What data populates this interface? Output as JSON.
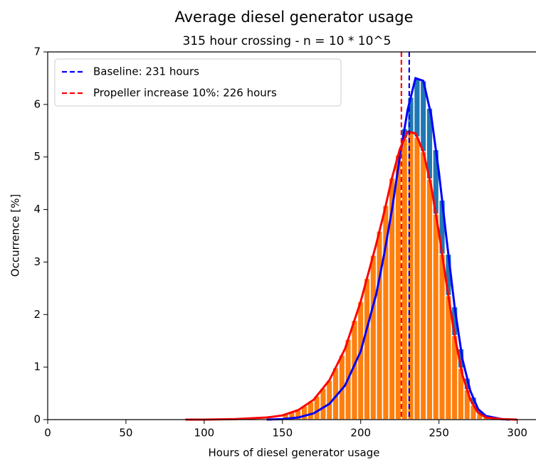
{
  "chart_data": {
    "type": "histogram",
    "title": "Average diesel generator usage",
    "subtitle": "315 hour crossing - n = 10 * 10^5",
    "xlabel": "Hours of diesel generator usage",
    "ylabel": "Occurrence [%]",
    "xlim": [
      0,
      312
    ],
    "ylim": [
      0,
      7
    ],
    "xticks": [
      0,
      50,
      100,
      150,
      200,
      250,
      300
    ],
    "yticks": [
      0,
      1,
      2,
      3,
      4,
      5,
      6,
      7
    ],
    "legend": "upper left",
    "bins": [
      150,
      154,
      158,
      162,
      166,
      170,
      174,
      178,
      182,
      186,
      190,
      194,
      198,
      202,
      206,
      210,
      214,
      218,
      222,
      226,
      230,
      234,
      238,
      242,
      246,
      250,
      254,
      258,
      262,
      266,
      270,
      274,
      278,
      282,
      286,
      290
    ],
    "histograms": [
      {
        "color": "#1f77b4",
        "values": [
          0.02,
          0.03,
          0.04,
          0.07,
          0.1,
          0.16,
          0.23,
          0.3,
          0.44,
          0.58,
          0.78,
          1.04,
          1.3,
          1.74,
          2.18,
          2.7,
          3.32,
          4.0,
          4.8,
          5.54,
          6.14,
          6.49,
          6.45,
          5.93,
          5.14,
          4.18,
          3.15,
          2.15,
          1.35,
          0.79,
          0.43,
          0.17,
          0.07,
          0.04,
          0.02
        ]
      },
      {
        "color": "#ff7f0e",
        "values": [
          0.1,
          0.14,
          0.18,
          0.26,
          0.34,
          0.45,
          0.6,
          0.75,
          0.99,
          1.23,
          1.53,
          1.89,
          2.25,
          2.69,
          3.13,
          3.59,
          4.08,
          4.6,
          5.04,
          5.35,
          5.47,
          5.38,
          5.1,
          4.58,
          3.91,
          3.15,
          2.36,
          1.6,
          0.98,
          0.57,
          0.28,
          0.11,
          0.04,
          0.03,
          0.02
        ]
      }
    ],
    "curves": [
      {
        "color": "#0000ff",
        "x": [
          140,
          150,
          160,
          170,
          180,
          190,
          200,
          210,
          215,
          220,
          225,
          230,
          235,
          240,
          245,
          250,
          255,
          260,
          265,
          270,
          275,
          280,
          290,
          295
        ],
        "values": [
          0,
          0.01,
          0.04,
          0.12,
          0.3,
          0.65,
          1.3,
          2.4,
          3.15,
          4.0,
          5.0,
          5.9,
          6.5,
          6.45,
          5.8,
          4.7,
          3.4,
          2.15,
          1.15,
          0.55,
          0.2,
          0.07,
          0.01,
          0
        ]
      },
      {
        "color": "#ff0000",
        "x": [
          88,
          100,
          120,
          140,
          150,
          160,
          170,
          180,
          190,
          200,
          210,
          215,
          220,
          225,
          230,
          235,
          240,
          245,
          250,
          255,
          260,
          265,
          270,
          275,
          280,
          290,
          300
        ],
        "values": [
          0,
          0,
          0.01,
          0.04,
          0.08,
          0.18,
          0.38,
          0.75,
          1.35,
          2.25,
          3.35,
          3.95,
          4.6,
          5.15,
          5.48,
          5.45,
          5.1,
          4.45,
          3.55,
          2.55,
          1.6,
          0.85,
          0.38,
          0.13,
          0.04,
          0.01,
          0
        ]
      }
    ],
    "vlines": [
      {
        "name": "Baseline: 231 hours",
        "x": 231,
        "color": "#0000ff"
      },
      {
        "name": "Propeller increase 10%: 226 hours",
        "x": 226,
        "color": "#ff0000"
      }
    ]
  }
}
